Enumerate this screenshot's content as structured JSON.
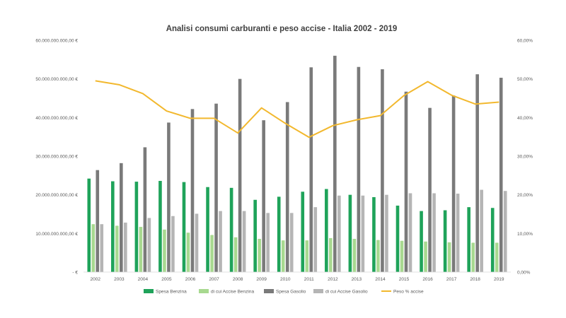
{
  "chart_data": {
    "type": "bar",
    "title": "Analisi consumi carburanti e peso accise - Italia 2002 - 2019",
    "categories": [
      "2002",
      "2003",
      "2004",
      "2005",
      "2006",
      "2007",
      "2008",
      "2009",
      "2010",
      "2011",
      "2012",
      "2013",
      "2014",
      "2015",
      "2016",
      "2017",
      "2018",
      "2019"
    ],
    "y_left": {
      "ylim": [
        0,
        60000000000
      ],
      "tick_values": [
        0,
        10000000000,
        20000000000,
        30000000000,
        40000000000,
        50000000000,
        60000000000
      ],
      "tick_labels": [
        "-  €",
        "10.000.000.000,00 €",
        "20.000.000.000,00 €",
        "30.000.000.000,00 €",
        "40.000.000.000,00 €",
        "50.000.000.000,00 €",
        "60.000.000.000,00 €"
      ]
    },
    "y_right": {
      "ylim": [
        0,
        60
      ],
      "tick_values": [
        0,
        10,
        20,
        30,
        40,
        50,
        60
      ],
      "tick_labels": [
        "0,00%",
        "10,00%",
        "20,00%",
        "30,00%",
        "40,00%",
        "50,00%",
        "60,00%"
      ]
    },
    "grid": false,
    "legend_position": "bottom",
    "series": [
      {
        "name": "Spesa Benzina",
        "type": "bar",
        "axis": "left",
        "color": "#1fa35a",
        "values": [
          24200000000,
          23500000000,
          23400000000,
          23600000000,
          23300000000,
          22000000000,
          21800000000,
          18700000000,
          19500000000,
          20800000000,
          21500000000,
          20000000000,
          19400000000,
          17200000000,
          15800000000,
          16000000000,
          16800000000,
          16600000000
        ]
      },
      {
        "name": "di cui Accise Benzina",
        "type": "bar",
        "axis": "left",
        "color": "#a8d990",
        "values": [
          12400000000,
          12000000000,
          11700000000,
          11000000000,
          10200000000,
          9600000000,
          9000000000,
          8600000000,
          8200000000,
          8200000000,
          8800000000,
          8600000000,
          8300000000,
          8100000000,
          7900000000,
          7700000000,
          7600000000,
          7600000000
        ]
      },
      {
        "name": "Spesa Gasolio",
        "type": "bar",
        "axis": "left",
        "color": "#7a7a7a",
        "values": [
          26400000000,
          28200000000,
          32300000000,
          38700000000,
          42200000000,
          43600000000,
          50000000000,
          39300000000,
          44000000000,
          53000000000,
          56000000000,
          53100000000,
          52500000000,
          46700000000,
          42500000000,
          45700000000,
          51200000000,
          50300000000
        ]
      },
      {
        "name": "di cui Accise Gasolio",
        "type": "bar",
        "axis": "left",
        "color": "#b5b5b5",
        "values": [
          12400000000,
          12800000000,
          14000000000,
          14500000000,
          15100000000,
          15800000000,
          15800000000,
          15300000000,
          15300000000,
          16800000000,
          19800000000,
          19800000000,
          20000000000,
          20400000000,
          20400000000,
          20300000000,
          21300000000,
          21000000000
        ]
      },
      {
        "name": "Peso % accise",
        "type": "line",
        "axis": "right",
        "color": "#f2b82e",
        "values": [
          49.5,
          48.5,
          46.2,
          41.7,
          39.8,
          39.8,
          36.0,
          42.5,
          38.5,
          34.9,
          37.9,
          39.4,
          40.5,
          45.7,
          49.3,
          45.8,
          43.5,
          44.0
        ]
      }
    ]
  }
}
